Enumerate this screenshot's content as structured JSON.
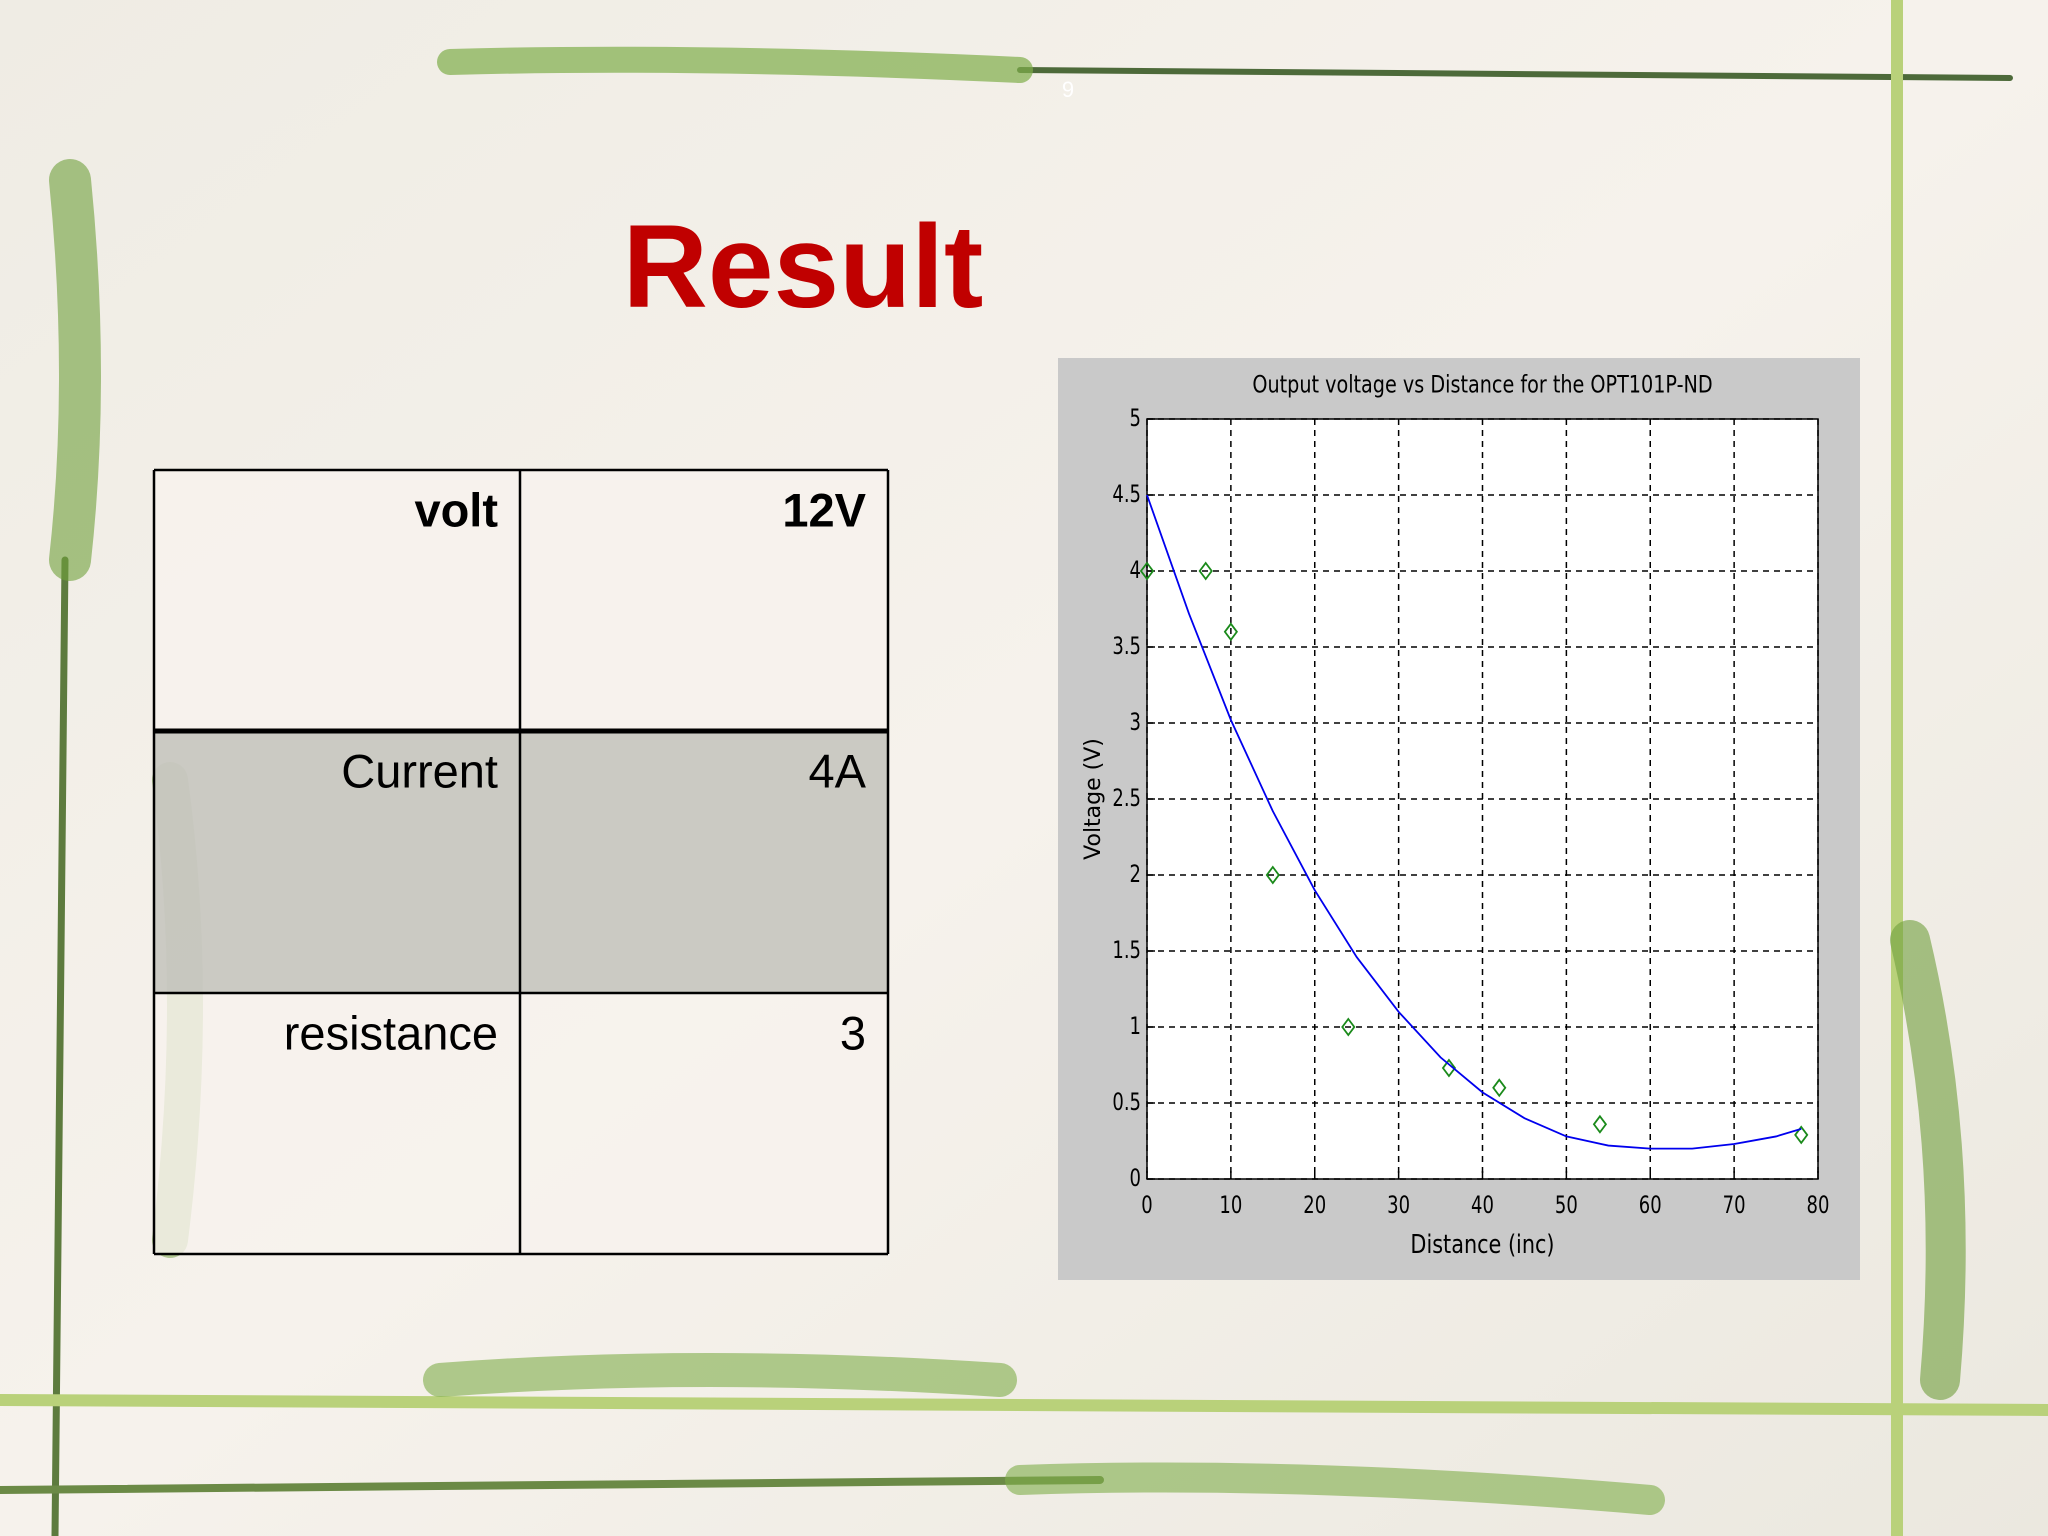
{
  "slide": {
    "number": "9",
    "title": "Result"
  },
  "table": {
    "rows": [
      [
        "volt",
        "12V"
      ],
      [
        "Current",
        "4A"
      ],
      [
        "resistance",
        "3"
      ]
    ]
  },
  "chart_data": {
    "type": "scatter",
    "title": "Output voltage vs Distance for the OPT101P-ND",
    "x_label": "Distance (inc)",
    "y_label": "Voltage (V)",
    "series": [
      {
        "style": "markers",
        "color": "#1a8a1a",
        "x": [
          0,
          7,
          10,
          15,
          24,
          36,
          42,
          54,
          78
        ],
        "values": [
          4,
          4,
          3.6,
          2,
          1,
          0.73,
          0.6,
          0.36,
          0.29
        ]
      },
      {
        "style": "line",
        "color": "#0000ee",
        "x": [
          0,
          5,
          10,
          15,
          20,
          25,
          30,
          35,
          40,
          45,
          50,
          55,
          60,
          65,
          70,
          75,
          78
        ],
        "values": [
          4.5,
          3.72,
          3.02,
          2.42,
          1.9,
          1.46,
          1.1,
          0.8,
          0.57,
          0.4,
          0.28,
          0.22,
          0.2,
          0.2,
          0.23,
          0.28,
          0.33
        ]
      }
    ],
    "xlim": [
      0,
      80
    ],
    "xticks": [
      0,
      10,
      20,
      30,
      40,
      50,
      60,
      70,
      80
    ],
    "ylim": [
      0,
      5
    ],
    "yticks": [
      0,
      0.5,
      1,
      1.5,
      2,
      2.5,
      3,
      3.5,
      4,
      4.5,
      5
    ],
    "grid": true
  }
}
